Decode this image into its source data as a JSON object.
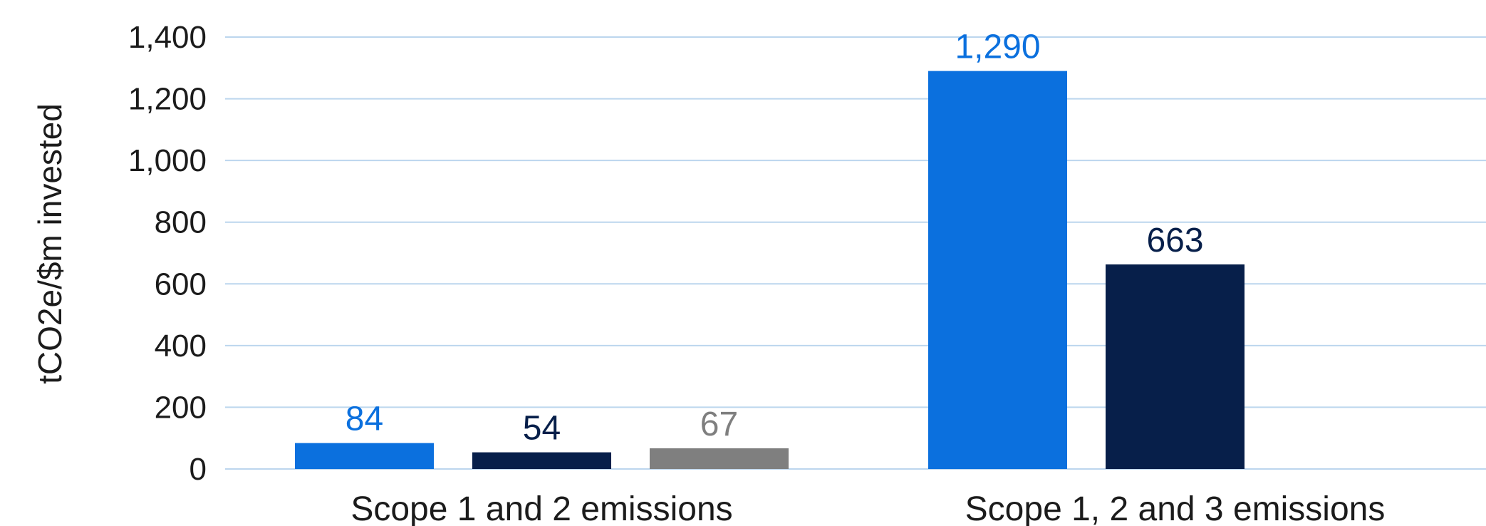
{
  "chart_data": {
    "type": "bar",
    "title": "",
    "xlabel": "",
    "ylabel": "tCO2e/$m invested",
    "ylim": [
      0,
      1400
    ],
    "yticks": [
      0,
      200,
      400,
      600,
      800,
      1000,
      1200,
      1400
    ],
    "ytick_labels": [
      "0",
      "200",
      "400",
      "600",
      "800",
      "1,000",
      "1,200",
      "1,400"
    ],
    "grid": true,
    "legend": "none",
    "categories": [
      "Scope 1 and 2 emissions",
      "Scope 1, 2 and 3 emissions"
    ],
    "series": [
      {
        "color": "#0b70de",
        "values": [
          84,
          1290
        ],
        "labels": [
          "84",
          "1,290"
        ]
      },
      {
        "color": "#071f4a",
        "values": [
          54,
          663
        ],
        "labels": [
          "54",
          "663"
        ]
      },
      {
        "color": "#7f7f7f",
        "values": [
          67,
          null
        ],
        "labels": [
          "67",
          ""
        ]
      }
    ]
  }
}
